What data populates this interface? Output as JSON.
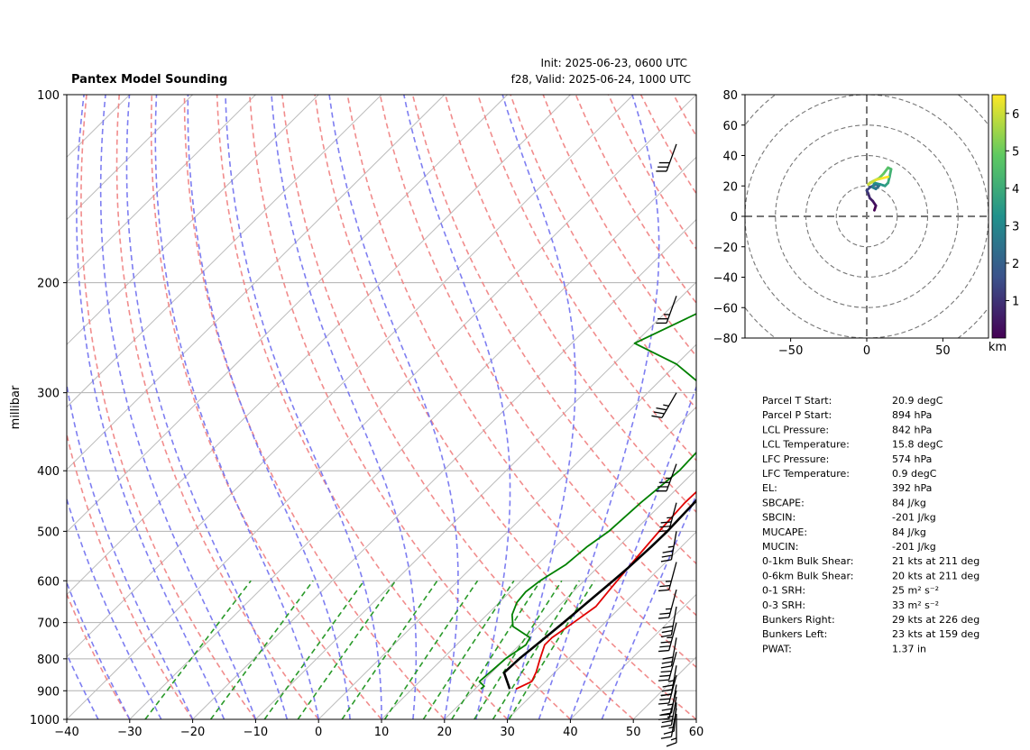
{
  "header": {
    "title": "Pantex Model Sounding",
    "init": "Init: 2025-06-23, 0600 UTC",
    "valid": "f28, Valid: 2025-06-24, 1000 UTC"
  },
  "chart_data": [
    {
      "type": "line",
      "name": "skew-t",
      "ylabel": "millibar",
      "x_ticks": [
        -40,
        -30,
        -20,
        -10,
        0,
        10,
        20,
        30,
        40,
        50,
        60
      ],
      "y_ticks": [
        100,
        200,
        300,
        400,
        500,
        600,
        700,
        800,
        900,
        1000
      ],
      "xlim": [
        -40,
        60
      ],
      "ylim": [
        1000,
        100
      ],
      "y_scale": "log",
      "colors": {
        "temperature": "#e00000",
        "dewpoint": "#008000",
        "parcel": "#000000",
        "dry_adiabat": "#f08080",
        "moist_adiabat": "#7070f0",
        "mixing_ratio": "#2a9a2a",
        "isotherm": "#bbbbbb"
      },
      "series": [
        {
          "values": [
            [
              894,
              26.5
            ],
            [
              870,
              27.8
            ],
            [
              840,
              27.0
            ],
            [
              800,
              25.5
            ],
            [
              760,
              24.0
            ],
            [
              740,
              24.0
            ],
            [
              700,
              25.0
            ],
            [
              660,
              26.0
            ],
            [
              620,
              25.5
            ],
            [
              580,
              25.0
            ],
            [
              540,
              24.5
            ],
            [
              500,
              24.0
            ],
            [
              450,
              23.5
            ],
            [
              400,
              23.8
            ],
            [
              350,
              23.2
            ],
            [
              300,
              22.0
            ],
            [
              250,
              18.0
            ],
            [
              200,
              12.3
            ],
            [
              170,
              10.5
            ],
            [
              140,
              10.0
            ],
            [
              120,
              13.0
            ],
            [
              100,
              16.2
            ]
          ]
        },
        {
          "values": [
            [
              894,
              20.9
            ],
            [
              885,
              21.0
            ],
            [
              870,
              19.5
            ],
            [
              800,
              20.0
            ],
            [
              760,
              21.0
            ],
            [
              740,
              20.5
            ],
            [
              710,
              16.0
            ],
            [
              680,
              14.0
            ],
            [
              650,
              12.8
            ],
            [
              625,
              12.5
            ],
            [
              600,
              13.0
            ],
            [
              565,
              14.5
            ],
            [
              530,
              15.0
            ],
            [
              500,
              16.0
            ],
            [
              450,
              16.5
            ],
            [
              400,
              17.5
            ],
            [
              340,
              17.0
            ],
            [
              300,
              10.0
            ],
            [
              270,
              0.0
            ],
            [
              250,
              -10.0
            ],
            [
              220,
              -4.0
            ],
            [
              180,
              -3.0
            ],
            [
              130,
              -6.0
            ],
            [
              113,
              -6.0
            ],
            [
              100,
              -1.0
            ]
          ]
        },
        {
          "values": [
            [
              894,
              25.5
            ],
            [
              842,
              22.0
            ],
            [
              800,
              22.2
            ],
            [
              750,
              22.8
            ],
            [
              700,
              23.4
            ],
            [
              650,
              24.0
            ],
            [
              600,
              24.6
            ],
            [
              574,
              24.9
            ],
            [
              530,
              25.2
            ],
            [
              500,
              25.3
            ],
            [
              450,
              25.0
            ],
            [
              400,
              24.2
            ],
            [
              350,
              23.0
            ],
            [
              300,
              21.0
            ],
            [
              250,
              18.0
            ],
            [
              200,
              14.5
            ],
            [
              150,
              11.0
            ],
            [
              120,
              8.5
            ],
            [
              100,
              7.0
            ]
          ]
        }
      ]
    },
    {
      "type": "line",
      "name": "hodograph",
      "x_ticks": [
        -50,
        0,
        50
      ],
      "y_ticks": [
        -80,
        -60,
        -40,
        -20,
        0,
        20,
        40,
        60,
        80
      ],
      "xlim": [
        -80,
        80
      ],
      "ylim": [
        -80,
        80
      ],
      "colorbar_ticks": [
        1,
        2,
        3,
        4,
        5,
        6
      ],
      "colorbar_label": "km",
      "colorbar_range": [
        0,
        6.5
      ],
      "series": [
        {
          "values": [
            [
              5,
              4
            ],
            [
              6,
              7
            ],
            [
              4,
              10
            ],
            [
              2,
              12
            ],
            [
              1,
              15
            ],
            [
              0,
              17
            ],
            [
              2,
              19
            ],
            [
              4,
              20
            ],
            [
              6,
              21
            ],
            [
              8,
              20
            ],
            [
              6,
              18
            ],
            [
              4,
              19
            ],
            [
              5,
              22
            ],
            [
              9,
              21
            ],
            [
              12,
              20
            ],
            [
              14,
              22
            ],
            [
              15,
              26
            ],
            [
              16,
              31
            ],
            [
              14,
              32
            ],
            [
              11,
              28
            ],
            [
              8,
              25
            ],
            [
              4,
              23
            ],
            [
              2,
              22
            ],
            [
              1,
              21
            ],
            [
              6,
              24
            ],
            [
              10,
              25
            ],
            [
              14,
              26
            ]
          ]
        }
      ]
    }
  ],
  "winds": [
    {
      "p": 120,
      "dir": 200,
      "spd": 30
    },
    {
      "p": 210,
      "dir": 200,
      "spd": 25
    },
    {
      "p": 300,
      "dir": 210,
      "spd": 35
    },
    {
      "p": 390,
      "dir": 200,
      "spd": 35
    },
    {
      "p": 450,
      "dir": 195,
      "spd": 35
    },
    {
      "p": 500,
      "dir": 190,
      "spd": 35
    },
    {
      "p": 560,
      "dir": 195,
      "spd": 25
    },
    {
      "p": 620,
      "dir": 195,
      "spd": 25
    },
    {
      "p": 660,
      "dir": 190,
      "spd": 30
    },
    {
      "p": 700,
      "dir": 195,
      "spd": 35
    },
    {
      "p": 740,
      "dir": 190,
      "spd": 30
    },
    {
      "p": 780,
      "dir": 195,
      "spd": 30
    },
    {
      "p": 820,
      "dir": 190,
      "spd": 35
    },
    {
      "p": 850,
      "dir": 195,
      "spd": 30
    },
    {
      "p": 880,
      "dir": 190,
      "spd": 25
    },
    {
      "p": 900,
      "dir": 195,
      "spd": 20
    },
    {
      "p": 920,
      "dir": 190,
      "spd": 25
    },
    {
      "p": 940,
      "dir": 185,
      "spd": 15
    },
    {
      "p": 960,
      "dir": 190,
      "spd": 10
    },
    {
      "p": 980,
      "dir": 180,
      "spd": 15
    }
  ],
  "stats": [
    {
      "label": "Parcel T Start:",
      "value": "20.9 degC"
    },
    {
      "label": "Parcel P Start:",
      "value": "894 hPa"
    },
    {
      "label": "LCL Pressure:",
      "value": "842 hPa"
    },
    {
      "label": "LCL Temperature:",
      "value": "15.8 degC"
    },
    {
      "label": "LFC Pressure:",
      "value": "574 hPa"
    },
    {
      "label": "LFC Temperature:",
      "value": "0.9 degC"
    },
    {
      "label": "EL:",
      "value": "392 hPa"
    },
    {
      "label": "SBCAPE:",
      "value": "84 J/kg"
    },
    {
      "label": "SBCIN:",
      "value": "-201 J/kg"
    },
    {
      "label": "MUCAPE:",
      "value": "84 J/kg"
    },
    {
      "label": "MUCIN:",
      "value": "-201 J/kg"
    },
    {
      "label": "0-1km Bulk Shear:",
      "value": "21 kts at 211 deg"
    },
    {
      "label": "0-6km Bulk Shear:",
      "value": "20 kts at 211 deg"
    },
    {
      "label": "0-1 SRH:",
      "value": "25 m² s⁻²"
    },
    {
      "label": "0-3 SRH:",
      "value": "33 m² s⁻²"
    },
    {
      "label": "Bunkers Right:",
      "value": "29 kts at 226 deg"
    },
    {
      "label": "Bunkers Left:",
      "value": "23 kts at 159 deg"
    },
    {
      "label": "PWAT:",
      "value": "1.37 in"
    }
  ]
}
